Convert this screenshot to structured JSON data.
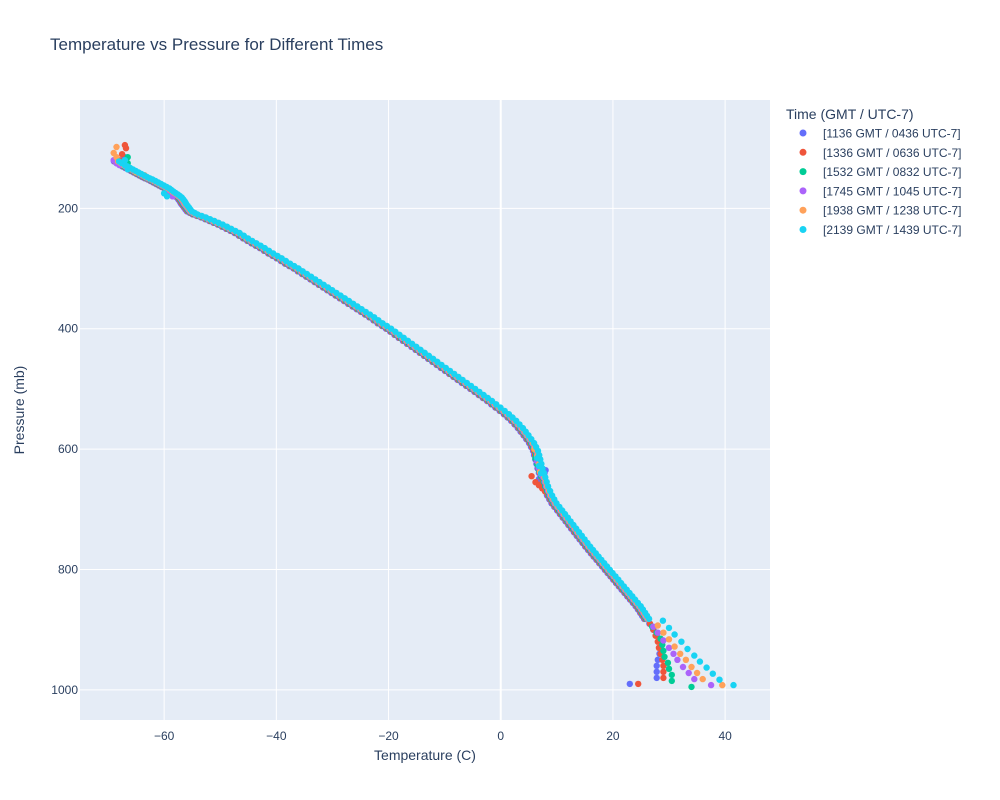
{
  "chart_data": {
    "type": "scatter",
    "title": "Temperature vs Pressure for Different Times",
    "xlabel": "Temperature (C)",
    "ylabel": "Pressure (mb)",
    "xlim": [
      -75,
      48
    ],
    "ylim": [
      1050,
      20
    ],
    "y_reversed": true,
    "x_ticks": [
      -60,
      -40,
      -20,
      0,
      20,
      40
    ],
    "x_tick_labels": [
      "−60",
      "−40",
      "−20",
      "0",
      "20",
      "40"
    ],
    "y_ticks": [
      200,
      400,
      600,
      800,
      1000
    ],
    "y_tick_labels": [
      "200",
      "400",
      "600",
      "800",
      "1000"
    ],
    "grid": true,
    "legend_title": "Time (GMT / UTC-7)",
    "legend_position": "top-right, outside plot",
    "series": [
      {
        "name": "[1136 GMT / 0436 UTC-7]",
        "color": "#636efa",
        "surface": [
          23.0,
          990
        ],
        "low": [
          [
            27.8,
            980
          ],
          [
            27.8,
            970
          ],
          [
            27.8,
            960
          ],
          [
            28.0,
            950
          ],
          [
            28.3,
            940
          ],
          [
            28.5,
            930
          ],
          [
            28.3,
            920
          ],
          [
            27.8,
            910
          ],
          [
            27.2,
            900
          ],
          [
            26.5,
            890
          ]
        ],
        "anomaly": [
          [
            8.0,
            635
          ],
          [
            7.8,
            640
          ],
          [
            7.2,
            645
          ],
          [
            6.8,
            650
          ]
        ],
        "top": [
          [
            -67.0,
            130
          ],
          [
            -67.5,
            120
          ],
          [
            -67.0,
            115
          ]
        ]
      },
      {
        "name": "[1336 GMT / 0636 UTC-7]",
        "color": "#ef553b",
        "surface": [
          24.5,
          990
        ],
        "low": [
          [
            29.0,
            980
          ],
          [
            29.0,
            970
          ],
          [
            29.0,
            960
          ],
          [
            28.8,
            950
          ],
          [
            28.5,
            940
          ],
          [
            28.2,
            930
          ],
          [
            28.0,
            920
          ],
          [
            27.6,
            910
          ],
          [
            27.2,
            900
          ],
          [
            26.6,
            890
          ]
        ],
        "anomaly": [
          [
            5.5,
            645
          ],
          [
            6.2,
            655
          ],
          [
            6.8,
            660
          ],
          [
            7.4,
            665
          ],
          [
            7.9,
            670
          ]
        ],
        "top": [
          [
            -67.0,
            95
          ],
          [
            -66.8,
            100
          ],
          [
            -67.5,
            110
          ],
          [
            -68.0,
            120
          ]
        ]
      },
      {
        "name": "[1532 GMT / 0832 UTC-7]",
        "color": "#00cc96",
        "surface": [
          34.0,
          995
        ],
        "low": [
          [
            30.5,
            985
          ],
          [
            30.5,
            975
          ],
          [
            30.0,
            965
          ],
          [
            29.8,
            955
          ],
          [
            29.2,
            945
          ],
          [
            29.0,
            935
          ],
          [
            28.8,
            925
          ],
          [
            28.5,
            915
          ],
          [
            27.8,
            905
          ],
          [
            27.0,
            895
          ]
        ],
        "anomaly": [
          [
            6.2,
            615
          ],
          [
            6.5,
            625
          ],
          [
            6.8,
            635
          ],
          [
            7.2,
            645
          ]
        ],
        "top": [
          [
            -66.5,
            115
          ],
          [
            -66.5,
            125
          ],
          [
            -67.2,
            130
          ],
          [
            -56.5,
            190
          ],
          [
            -56.0,
            195
          ]
        ]
      },
      {
        "name": "[1745 GMT / 1045 UTC-7]",
        "color": "#ab63fa",
        "surface": [
          37.5,
          992
        ],
        "low": [
          [
            34.5,
            982
          ],
          [
            33.5,
            972
          ],
          [
            32.5,
            962
          ],
          [
            31.5,
            950
          ],
          [
            30.8,
            940
          ],
          [
            30.0,
            930
          ],
          [
            29.0,
            918
          ],
          [
            28.0,
            905
          ],
          [
            27.2,
            895
          ]
        ],
        "anomaly": [
          [
            6.5,
            620
          ],
          [
            6.8,
            632
          ],
          [
            7.2,
            642
          ]
        ],
        "top": [
          [
            -69.0,
            120
          ],
          [
            -68.5,
            125
          ],
          [
            -68.0,
            128
          ],
          [
            -59.0,
            175
          ],
          [
            -58.5,
            180
          ]
        ]
      },
      {
        "name": "[1938 GMT / 1238 UTC-7]",
        "color": "#ffa15a",
        "surface": [
          39.5,
          992
        ],
        "low": [
          [
            36.0,
            982
          ],
          [
            35.0,
            972
          ],
          [
            34.0,
            962
          ],
          [
            33.0,
            950
          ],
          [
            32.0,
            940
          ],
          [
            31.0,
            928
          ],
          [
            30.0,
            916
          ],
          [
            29.0,
            905
          ],
          [
            28.0,
            893
          ]
        ],
        "anomaly": [
          [
            6.0,
            600
          ],
          [
            6.5,
            612
          ],
          [
            6.8,
            625
          ],
          [
            7.0,
            638
          ]
        ],
        "top": [
          [
            -68.5,
            98
          ],
          [
            -69.0,
            108
          ],
          [
            -68.5,
            115
          ],
          [
            -65.0,
            140
          ],
          [
            -63.5,
            145
          ]
        ]
      },
      {
        "name": "[2139 GMT / 1439 UTC-7]",
        "color": "#19d3f3",
        "surface": [
          41.5,
          992
        ],
        "low": [
          [
            39.0,
            983
          ],
          [
            37.8,
            973
          ],
          [
            36.7,
            963
          ],
          [
            35.5,
            953
          ],
          [
            34.5,
            943
          ],
          [
            33.3,
            932
          ],
          [
            32.2,
            920
          ],
          [
            31.0,
            908
          ],
          [
            30.0,
            897
          ],
          [
            28.9,
            885
          ]
        ],
        "anomaly": [
          [
            6.5,
            615
          ],
          [
            6.8,
            628
          ],
          [
            7.2,
            640
          ]
        ],
        "top": [
          [
            -67.0,
            120
          ],
          [
            -67.0,
            128
          ],
          [
            -66.5,
            135
          ],
          [
            -60.0,
            175
          ],
          [
            -59.5,
            180
          ]
        ]
      }
    ],
    "shared_profile": [
      [
        -68.5,
        122
      ],
      [
        -67.5,
        128
      ],
      [
        -66.5,
        133
      ],
      [
        -65.5,
        138
      ],
      [
        -64.5,
        143
      ],
      [
        -63.5,
        148
      ],
      [
        -62.5,
        152
      ],
      [
        -61.5,
        157
      ],
      [
        -60.5,
        162
      ],
      [
        -59.5,
        167
      ],
      [
        -58.8,
        172
      ],
      [
        -58.0,
        177
      ],
      [
        -57.3,
        182
      ],
      [
        -56.8,
        188
      ],
      [
        -56.5,
        193
      ],
      [
        -56.0,
        199
      ],
      [
        -55.5,
        205
      ],
      [
        -54.5,
        210
      ],
      [
        -53.0,
        215
      ],
      [
        -51.5,
        221
      ],
      [
        -50.0,
        227
      ],
      [
        -48.5,
        234
      ],
      [
        -47.0,
        241
      ],
      [
        -45.5,
        250
      ],
      [
        -44.0,
        258
      ],
      [
        -42.5,
        266
      ],
      [
        -41.0,
        275
      ],
      [
        -39.5,
        283
      ],
      [
        -38.0,
        292
      ],
      [
        -36.5,
        300
      ],
      [
        -35.0,
        309
      ],
      [
        -33.5,
        318
      ],
      [
        -32.0,
        327
      ],
      [
        -30.5,
        336
      ],
      [
        -29.0,
        345
      ],
      [
        -27.5,
        354
      ],
      [
        -26.0,
        363
      ],
      [
        -24.5,
        372
      ],
      [
        -23.0,
        381
      ],
      [
        -21.5,
        391
      ],
      [
        -20.0,
        400
      ],
      [
        -18.5,
        410
      ],
      [
        -17.0,
        420
      ],
      [
        -15.5,
        430
      ],
      [
        -14.0,
        440
      ],
      [
        -12.5,
        450
      ],
      [
        -11.0,
        460
      ],
      [
        -9.5,
        470
      ],
      [
        -8.0,
        480
      ],
      [
        -6.5,
        490
      ],
      [
        -5.0,
        500
      ],
      [
        -3.5,
        510
      ],
      [
        -2.0,
        520
      ],
      [
        -0.5,
        531
      ],
      [
        1.0,
        542
      ],
      [
        2.3,
        553
      ],
      [
        3.5,
        565
      ],
      [
        4.5,
        577
      ],
      [
        5.5,
        590
      ],
      [
        6.2,
        603
      ],
      [
        6.6,
        617
      ],
      [
        7.0,
        632
      ],
      [
        7.5,
        647
      ],
      [
        8.0,
        662
      ],
      [
        8.7,
        677
      ],
      [
        9.5,
        690
      ],
      [
        10.5,
        702
      ],
      [
        11.5,
        714
      ],
      [
        12.5,
        726
      ],
      [
        13.5,
        738
      ],
      [
        14.5,
        750
      ],
      [
        15.5,
        762
      ],
      [
        16.5,
        773
      ],
      [
        17.5,
        784
      ],
      [
        18.5,
        795
      ],
      [
        19.5,
        806
      ],
      [
        20.5,
        817
      ],
      [
        21.5,
        828
      ],
      [
        22.5,
        839
      ],
      [
        23.5,
        850
      ],
      [
        24.5,
        861
      ],
      [
        25.3,
        872
      ],
      [
        26.0,
        882
      ]
    ]
  }
}
